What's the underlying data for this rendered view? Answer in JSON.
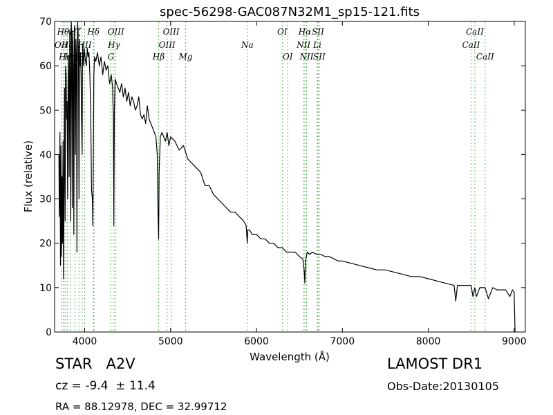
{
  "chart_data": {
    "type": "line",
    "title": "spec-56298-GAC087N32M1_sp15-121.fits",
    "xlabel": "Wavelength (Å)",
    "ylabel": "Flux (relative)",
    "xlim": [
      3650,
      9130
    ],
    "ylim": [
      0,
      70
    ],
    "xticks": [
      4000,
      5000,
      6000,
      7000,
      8000,
      9000
    ],
    "yticks": [
      0,
      10,
      20,
      30,
      40,
      50,
      60,
      70
    ],
    "grid": false,
    "series": [
      {
        "color": "#000000",
        "x": [
          3700,
          3705,
          3712,
          3718,
          3724,
          3730,
          3736,
          3742,
          3748,
          3754,
          3760,
          3766,
          3772,
          3778,
          3784,
          3790,
          3796,
          3802,
          3808,
          3814,
          3820,
          3826,
          3832,
          3838,
          3844,
          3850,
          3856,
          3862,
          3868,
          3874,
          3880,
          3886,
          3892,
          3898,
          3904,
          3910,
          3916,
          3922,
          3928,
          3934,
          3940,
          3946,
          3952,
          3958,
          3964,
          3970,
          3976,
          3982,
          3988,
          3994,
          4000,
          4010,
          4020,
          4030,
          4040,
          4050,
          4060,
          4070,
          4080,
          4090,
          4095,
          4101,
          4107,
          4115,
          4130,
          4150,
          4170,
          4190,
          4210,
          4230,
          4250,
          4270,
          4290,
          4310,
          4325,
          4334,
          4340,
          4346,
          4355,
          4370,
          4390,
          4410,
          4430,
          4450,
          4470,
          4490,
          4510,
          4530,
          4550,
          4570,
          4590,
          4610,
          4630,
          4650,
          4670,
          4690,
          4710,
          4730,
          4750,
          4770,
          4790,
          4810,
          4830,
          4845,
          4855,
          4861,
          4867,
          4880,
          4900,
          4920,
          4940,
          4960,
          4980,
          5000,
          5050,
          5100,
          5150,
          5200,
          5250,
          5300,
          5350,
          5400,
          5450,
          5500,
          5550,
          5600,
          5650,
          5700,
          5750,
          5800,
          5850,
          5880,
          5893,
          5900,
          5920,
          5950,
          6000,
          6050,
          6100,
          6150,
          6200,
          6250,
          6300,
          6350,
          6400,
          6450,
          6500,
          6540,
          6555,
          6563,
          6571,
          6590,
          6620,
          6650,
          6700,
          6750,
          6800,
          6850,
          6900,
          6950,
          7000,
          7100,
          7200,
          7300,
          7400,
          7500,
          7600,
          7700,
          7800,
          7900,
          8000,
          8100,
          8200,
          8300,
          8320,
          8340,
          8400,
          8450,
          8498,
          8520,
          8542,
          8560,
          8600,
          8662,
          8700,
          8750,
          8800,
          8850,
          8900,
          8950,
          8980,
          9000,
          9010
        ],
        "y": [
          40,
          26,
          45,
          15,
          42,
          17,
          35,
          20,
          43,
          12,
          33,
          55,
          25,
          60,
          58,
          48,
          52,
          30,
          55,
          62,
          35,
          68,
          58,
          25,
          70,
          65,
          28,
          68,
          60,
          22,
          69,
          64,
          40,
          66,
          62,
          18,
          70,
          68,
          62,
          30,
          66,
          60,
          63,
          58,
          48,
          40,
          65,
          62,
          60,
          64,
          63,
          61,
          60,
          64,
          62,
          63,
          58,
          50,
          32,
          30,
          24,
          40,
          58,
          62,
          61,
          63,
          60,
          62,
          58,
          61,
          59,
          60,
          56,
          58,
          55,
          48,
          24,
          50,
          57,
          56,
          55,
          54,
          56,
          53,
          55,
          52,
          54,
          51,
          53,
          52,
          50,
          51,
          53,
          49,
          48,
          49,
          47,
          51,
          48,
          47,
          46,
          45,
          44,
          40,
          26,
          21,
          36,
          44,
          45,
          44,
          43,
          45,
          42,
          44,
          43,
          41,
          42,
          39,
          38,
          37,
          36,
          33,
          33,
          31,
          30,
          29,
          28,
          27,
          27,
          26,
          25,
          24,
          20,
          23,
          23,
          22,
          22,
          21,
          21,
          20,
          20,
          19,
          19,
          18,
          18,
          18,
          17,
          16.5,
          14,
          11,
          16,
          18,
          17.5,
          18,
          17.5,
          17.5,
          17,
          17,
          16.5,
          16,
          16,
          15.5,
          15,
          14.5,
          14,
          14,
          13.5,
          13,
          12.5,
          12.5,
          12,
          11.5,
          11,
          10.5,
          7,
          10.5,
          10.5,
          10.5,
          10.5,
          8,
          10,
          8,
          10,
          10,
          7.5,
          10,
          9.5,
          9.5,
          9.5,
          8,
          9.5,
          9,
          0
        ]
      }
    ],
    "lines": [
      {
        "x": 3727,
        "label": "OII",
        "row": 2
      },
      {
        "x": 3750,
        "label": "Hθ",
        "row": 1
      },
      {
        "x": 3771,
        "label": "Hη",
        "row": 3
      },
      {
        "x": 3798,
        "label": "Hζ",
        "row": 2
      },
      {
        "x": 3835,
        "label": "Hη",
        "row": 3
      },
      {
        "x": 3889,
        "label": "Hζ",
        "row": 1
      },
      {
        "x": 3934,
        "label": "K",
        "row": 3
      },
      {
        "x": 3969,
        "label": "H",
        "row": 3
      },
      {
        "x": 4000,
        "label": "HII",
        "row": 2
      },
      {
        "x": 4102,
        "label": "Hδ",
        "row": 1
      },
      {
        "x": 4108,
        "label": "",
        "row": 0
      },
      {
        "x": 4304,
        "label": "G",
        "row": 3
      },
      {
        "x": 4341,
        "label": "Hγ",
        "row": 2
      },
      {
        "x": 4363,
        "label": "OIII",
        "row": 1
      },
      {
        "x": 4861,
        "label": "Hβ",
        "row": 3
      },
      {
        "x": 4959,
        "label": "OIII",
        "row": 2
      },
      {
        "x": 5007,
        "label": "OIII",
        "row": 1
      },
      {
        "x": 5175,
        "label": "Mg",
        "row": 3
      },
      {
        "x": 5894,
        "label": "Na",
        "row": 2
      },
      {
        "x": 6300,
        "label": "OI",
        "row": 1
      },
      {
        "x": 6364,
        "label": "OI",
        "row": 3
      },
      {
        "x": 6548,
        "label": "NII",
        "row": 2
      },
      {
        "x": 6563,
        "label": "Hα",
        "row": 1
      },
      {
        "x": 6583,
        "label": "NII",
        "row": 3
      },
      {
        "x": 6708,
        "label": "Li",
        "row": 2
      },
      {
        "x": 6716,
        "label": "SII",
        "row": 1
      },
      {
        "x": 6731,
        "label": "SII",
        "row": 3
      },
      {
        "x": 8498,
        "label": "CaII",
        "row": 2
      },
      {
        "x": 8542,
        "label": "CaII",
        "row": 1
      },
      {
        "x": 8662,
        "label": "CaII",
        "row": 3
      }
    ]
  },
  "info": {
    "class_label": "STAR   A2V",
    "redshift": "cz = -9.4  ± 11.4",
    "coords": "RA = 88.12978, DEC = 32.99712",
    "survey": "LAMOST DR1",
    "obs_date": "Obs-Date:20130105"
  }
}
